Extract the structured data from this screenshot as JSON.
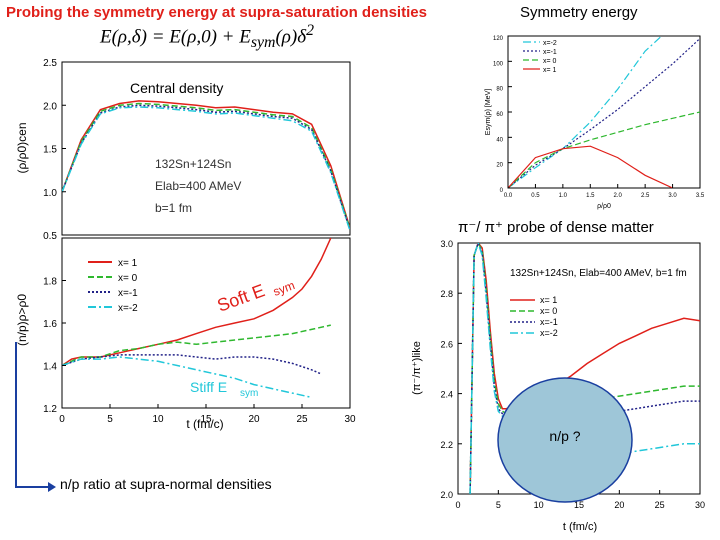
{
  "header": {
    "title": "Probing the symmetry energy at supra-saturation densities",
    "subtitle": "Symmetry energy",
    "equation": "E(ρ,δ) = E(ρ,0) + E",
    "equation_sub": "sym",
    "equation_tail": "(ρ)δ",
    "equation_sup": "2"
  },
  "labels": {
    "central_density": "Central density",
    "pion_probe": "π⁻/ π⁺ probe of dense matter",
    "np_ratio": "n/p ratio at supra-normal densities",
    "soft": "Soft E",
    "soft_sub": "sym",
    "stiff": "Stiff E",
    "stiff_sub": "sym",
    "np_question": "n/p ?"
  },
  "colors": {
    "x1": "#e0201a",
    "x0": "#2fb82f",
    "xm1": "#222288",
    "xm2": "#21c7d9",
    "title_red": "#e0201a",
    "ellipse_fill": "#9ec6d8",
    "ellipse_stroke": "#1a3fa0"
  },
  "chart_data": [
    {
      "type": "line",
      "title": "Central density",
      "ylabel": "(ρ/ρ0)cen",
      "ylim": [
        0.5,
        2.5
      ],
      "xlim": [
        0,
        30
      ],
      "yticks": [
        "2.5",
        "2.0",
        "1.5",
        "1.0",
        "0.5"
      ],
      "annotation": [
        "132Sn+124Sn",
        "Elab=400 AMeV",
        "b=1 fm"
      ],
      "series": [
        {
          "key": "x1",
          "x": [
            0,
            2,
            4,
            6,
            8,
            10,
            12,
            14,
            16,
            18,
            20,
            22,
            24,
            26,
            28,
            30
          ],
          "y": [
            1.0,
            1.6,
            1.95,
            2.02,
            2.05,
            2.04,
            2.02,
            2.0,
            1.97,
            1.98,
            1.95,
            1.92,
            1.9,
            1.78,
            1.3,
            0.58
          ]
        },
        {
          "key": "x0",
          "x": [
            0,
            2,
            4,
            6,
            8,
            10,
            12,
            14,
            16,
            18,
            20,
            22,
            24,
            26,
            28,
            30
          ],
          "y": [
            1.0,
            1.58,
            1.93,
            2.0,
            2.02,
            2.01,
            1.99,
            1.97,
            1.94,
            1.95,
            1.92,
            1.89,
            1.87,
            1.74,
            1.26,
            0.57
          ]
        },
        {
          "key": "xm1",
          "x": [
            0,
            2,
            4,
            6,
            8,
            10,
            12,
            14,
            16,
            18,
            20,
            22,
            24,
            26,
            28,
            30
          ],
          "y": [
            1.0,
            1.56,
            1.91,
            1.98,
            2.0,
            1.99,
            1.97,
            1.95,
            1.92,
            1.93,
            1.9,
            1.87,
            1.85,
            1.72,
            1.24,
            0.56
          ]
        },
        {
          "key": "xm2",
          "x": [
            0,
            2,
            4,
            6,
            8,
            10,
            12,
            14,
            16,
            18,
            20,
            22,
            24,
            26,
            28,
            30
          ],
          "y": [
            1.0,
            1.55,
            1.9,
            1.97,
            1.98,
            1.97,
            1.95,
            1.93,
            1.9,
            1.91,
            1.88,
            1.85,
            1.82,
            1.7,
            1.22,
            0.55
          ]
        }
      ]
    },
    {
      "type": "line",
      "xlabel": "t (fm/c)",
      "ylabel": "(n/p)ρ>ρ0",
      "xlim": [
        0,
        30
      ],
      "ylim": [
        1.2,
        2.0
      ],
      "xticks": [
        "0",
        "5",
        "10",
        "15",
        "20",
        "25",
        "30"
      ],
      "yticks": [
        "1.8",
        "1.6",
        "1.4",
        "1.2"
      ],
      "legend": [
        "x= 1",
        "x= 0",
        "x=-1",
        "x=-2"
      ],
      "series": [
        {
          "key": "x1",
          "name": "x= 1",
          "x": [
            0,
            1,
            2,
            3,
            4,
            5,
            6,
            8,
            10,
            12,
            14,
            16,
            18,
            20,
            22,
            24,
            25,
            26,
            27,
            28
          ],
          "y": [
            1.4,
            1.43,
            1.44,
            1.44,
            1.44,
            1.45,
            1.46,
            1.48,
            1.5,
            1.52,
            1.55,
            1.58,
            1.6,
            1.62,
            1.66,
            1.72,
            1.76,
            1.82,
            1.9,
            2.0
          ]
        },
        {
          "key": "x0",
          "name": "x= 0",
          "x": [
            0,
            2,
            4,
            6,
            8,
            10,
            12,
            14,
            16,
            18,
            20,
            22,
            24,
            26,
            28
          ],
          "y": [
            1.4,
            1.44,
            1.44,
            1.47,
            1.48,
            1.5,
            1.51,
            1.5,
            1.51,
            1.52,
            1.53,
            1.54,
            1.55,
            1.57,
            1.59
          ]
        },
        {
          "key": "xm1",
          "name": "x=-1",
          "x": [
            0,
            2,
            4,
            6,
            8,
            10,
            12,
            14,
            16,
            18,
            20,
            22,
            24,
            26,
            27
          ],
          "y": [
            1.4,
            1.43,
            1.44,
            1.45,
            1.45,
            1.45,
            1.45,
            1.44,
            1.43,
            1.44,
            1.44,
            1.43,
            1.41,
            1.38,
            1.36
          ]
        },
        {
          "key": "xm2",
          "name": "x=-2",
          "x": [
            0,
            2,
            4,
            6,
            8,
            10,
            12,
            14,
            16,
            18,
            20,
            22,
            24,
            26
          ],
          "y": [
            1.4,
            1.43,
            1.43,
            1.44,
            1.43,
            1.42,
            1.4,
            1.38,
            1.36,
            1.34,
            1.31,
            1.29,
            1.27,
            1.25
          ]
        }
      ]
    },
    {
      "type": "line",
      "xlabel": "ρ/ρ0",
      "ylabel": "Esym(ρ) [MeV]",
      "xlim": [
        0,
        3.5
      ],
      "ylim": [
        0,
        120
      ],
      "xticks": [
        "0.0",
        "0.5",
        "1.0",
        "1.5",
        "2.0",
        "2.5",
        "3.0",
        "3.5"
      ],
      "yticks": [
        "120",
        "100",
        "80",
        "60",
        "40",
        "20",
        "0"
      ],
      "legend": [
        "x=-2",
        "x=-1",
        "x= 0",
        "x= 1"
      ],
      "series": [
        {
          "key": "xm2",
          "name": "x=-2",
          "x": [
            0,
            0.5,
            1.0,
            1.5,
            2.0,
            2.5,
            2.8
          ],
          "y": [
            0,
            16,
            31,
            52,
            78,
            108,
            120
          ]
        },
        {
          "key": "xm1",
          "name": "x=-1",
          "x": [
            0,
            0.5,
            1.0,
            1.5,
            2.0,
            2.5,
            3.0,
            3.5
          ],
          "y": [
            0,
            18,
            31,
            46,
            62,
            80,
            98,
            118
          ]
        },
        {
          "key": "x0",
          "name": "x= 0",
          "x": [
            0,
            0.5,
            1.0,
            1.5,
            2.0,
            2.5,
            3.0,
            3.5
          ],
          "y": [
            0,
            20,
            31,
            38,
            44,
            50,
            55,
            60
          ]
        },
        {
          "key": "x1",
          "name": "x= 1",
          "x": [
            0,
            0.5,
            1.0,
            1.5,
            2.0,
            2.5,
            3.0
          ],
          "y": [
            0,
            24,
            31,
            33,
            24,
            10,
            0
          ]
        }
      ]
    },
    {
      "type": "line",
      "xlabel": "t (fm/c)",
      "ylabel": "(π⁻/π⁺)like",
      "xlim": [
        0,
        30
      ],
      "ylim": [
        2.0,
        3.0
      ],
      "xticks": [
        "0",
        "5",
        "10",
        "15",
        "20",
        "25",
        "30"
      ],
      "yticks": [
        "3.0",
        "2.8",
        "2.6",
        "2.4",
        "2.2",
        "2.0"
      ],
      "annotation": "132Sn+124Sn, Elab=400 AMeV, b=1 fm",
      "legend": [
        "x= 1",
        "x= 0",
        "x=-1",
        "x=-2"
      ],
      "series": [
        {
          "key": "x1",
          "name": "x= 1",
          "x": [
            1.5,
            2.0,
            2.5,
            3,
            3.5,
            4,
            4.5,
            5,
            5.5,
            6,
            8,
            10,
            12,
            14,
            16,
            18,
            20,
            22,
            24,
            26,
            28,
            30
          ],
          "y": [
            2.0,
            2.95,
            3.0,
            2.98,
            2.85,
            2.65,
            2.48,
            2.38,
            2.34,
            2.34,
            2.37,
            2.4,
            2.43,
            2.47,
            2.52,
            2.56,
            2.6,
            2.63,
            2.66,
            2.68,
            2.7,
            2.69
          ]
        },
        {
          "key": "x0",
          "name": "x= 0",
          "x": [
            1.5,
            2.0,
            2.5,
            3,
            3.5,
            4,
            4.5,
            5,
            5.5,
            6,
            8,
            10,
            12,
            14,
            16,
            18,
            20,
            22,
            24,
            26,
            28,
            30
          ],
          "y": [
            2.0,
            2.95,
            3.0,
            2.97,
            2.82,
            2.62,
            2.45,
            2.36,
            2.33,
            2.32,
            2.33,
            2.34,
            2.35,
            2.36,
            2.37,
            2.38,
            2.39,
            2.4,
            2.41,
            2.42,
            2.43,
            2.43
          ]
        },
        {
          "key": "xm1",
          "name": "x=-1",
          "x": [
            1.5,
            2.0,
            2.5,
            3,
            3.5,
            4,
            4.5,
            5,
            5.5,
            6,
            8,
            10,
            12,
            14,
            16,
            18,
            20,
            22,
            24,
            26,
            28,
            30
          ],
          "y": [
            2.0,
            2.95,
            3.0,
            2.96,
            2.8,
            2.6,
            2.43,
            2.34,
            2.32,
            2.31,
            2.3,
            2.3,
            2.3,
            2.31,
            2.31,
            2.32,
            2.33,
            2.34,
            2.35,
            2.36,
            2.37,
            2.37
          ]
        },
        {
          "key": "xm2",
          "name": "x=-2",
          "x": [
            1.5,
            2.0,
            2.5,
            3,
            3.5,
            4,
            4.5,
            5,
            5.5,
            6,
            8,
            10,
            12,
            14,
            16,
            18,
            20,
            22,
            24,
            26,
            28,
            30
          ],
          "y": [
            2.0,
            2.95,
            3.0,
            2.95,
            2.78,
            2.58,
            2.41,
            2.33,
            2.31,
            2.3,
            2.25,
            2.21,
            2.18,
            2.16,
            2.15,
            2.15,
            2.16,
            2.17,
            2.18,
            2.19,
            2.2,
            2.2
          ]
        }
      ]
    }
  ]
}
